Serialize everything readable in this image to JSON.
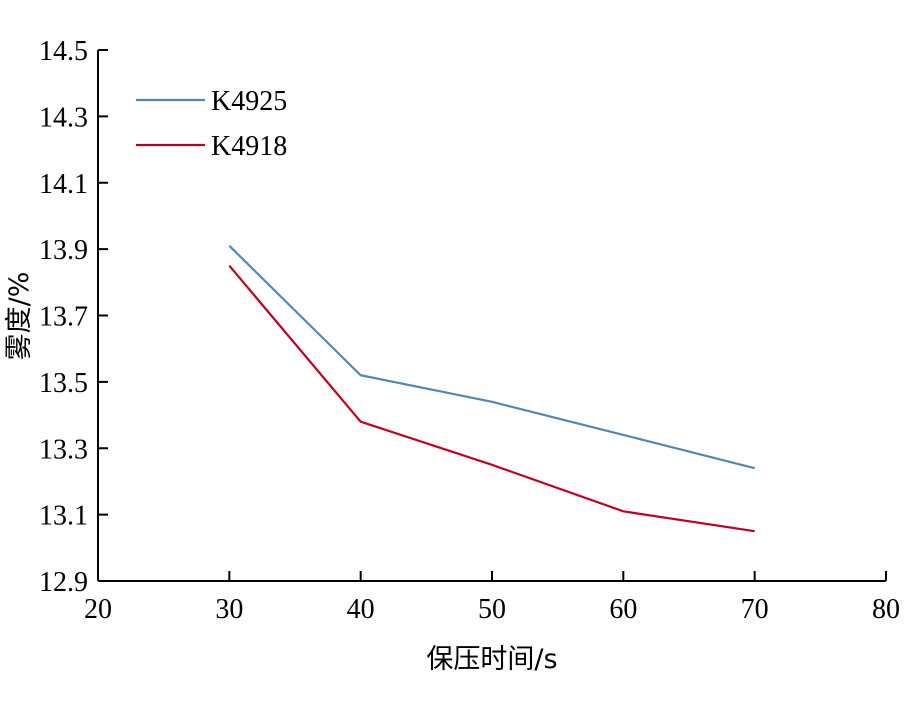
{
  "chart_data": {
    "type": "line",
    "xlabel": "保压时间/s",
    "ylabel": "雾度/%",
    "xlim": [
      20,
      80
    ],
    "ylim": [
      12.9,
      14.5
    ],
    "x_ticks": [
      "20",
      "30",
      "40",
      "50",
      "60",
      "70",
      "80"
    ],
    "y_ticks": [
      "12.9",
      "13.1",
      "13.3",
      "13.5",
      "13.7",
      "13.9",
      "14.1",
      "14.3",
      "14.5"
    ],
    "x": [
      30,
      40,
      50,
      60,
      70
    ],
    "series": [
      {
        "name": "K4925",
        "color": "#4f87b5",
        "values": [
          13.91,
          13.52,
          13.44,
          13.34,
          13.24
        ]
      },
      {
        "name": "K4918",
        "color": "#c00020",
        "values": [
          13.85,
          13.38,
          13.25,
          13.11,
          13.05
        ]
      }
    ],
    "grid": false,
    "legend_position": "top-left"
  }
}
